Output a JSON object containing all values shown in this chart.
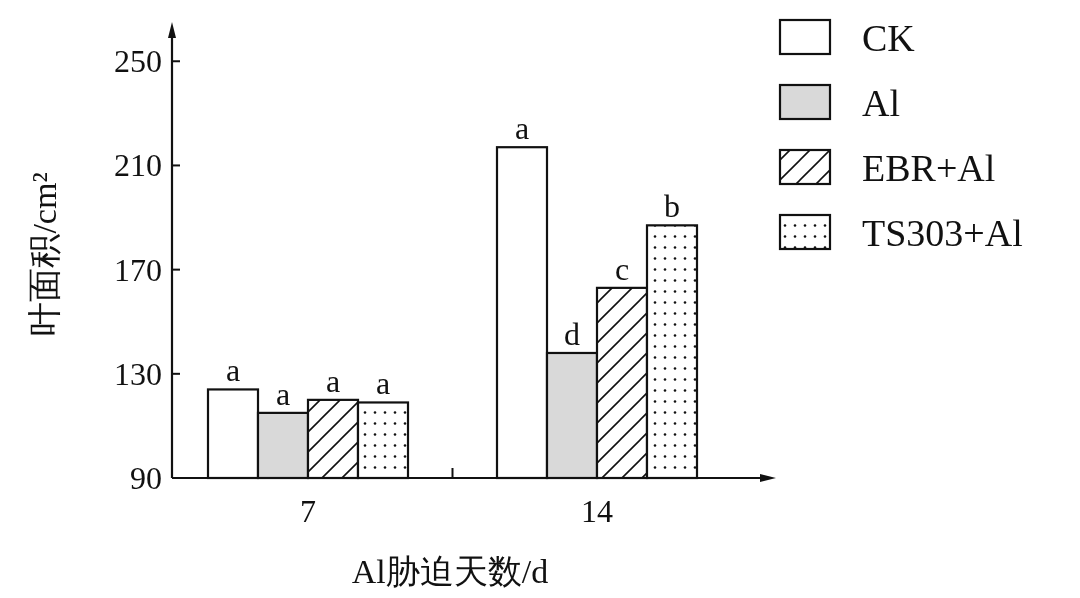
{
  "chart_data": {
    "type": "bar",
    "ylabel": "叶面积/cm²",
    "xlabel": "Al胁迫天数/d",
    "categories": [
      "7",
      "14"
    ],
    "series": [
      {
        "name": "CK",
        "color": "#ffffff",
        "values": [
          124,
          217
        ],
        "value_labels": [
          "a",
          "a"
        ]
      },
      {
        "name": "Al",
        "color": "#d9d9d9",
        "values": [
          115,
          138
        ],
        "value_labels": [
          "a",
          "d"
        ]
      },
      {
        "name": "EBR+Al",
        "color": "#111111",
        "values": [
          120,
          163
        ],
        "value_labels": [
          "a",
          "c"
        ]
      },
      {
        "name": "TS303+Al",
        "color": "#111111",
        "values": [
          119,
          187
        ],
        "value_labels": [
          "a",
          "b"
        ]
      }
    ],
    "ylim": [
      90,
      262
    ],
    "yticks": [
      90,
      130,
      170,
      210,
      250
    ],
    "grid": false,
    "legend": "top right"
  }
}
